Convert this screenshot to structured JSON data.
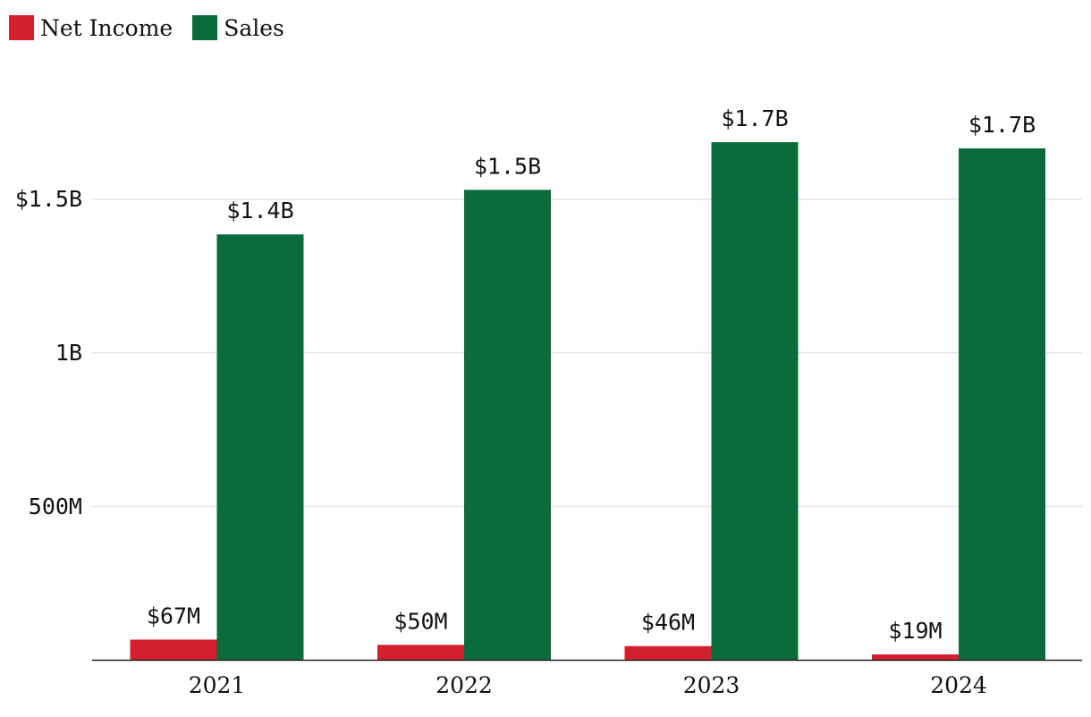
{
  "legend": {
    "items": [
      {
        "label": "Net Income",
        "color": "#d2202f"
      },
      {
        "label": "Sales",
        "color": "#0b6b3a"
      }
    ]
  },
  "chart_data": {
    "type": "bar",
    "categories": [
      "2021",
      "2022",
      "2023",
      "2024"
    ],
    "series": [
      {
        "name": "Net Income",
        "color": "#d2202f",
        "values": [
          67000000,
          50000000,
          46000000,
          19000000
        ],
        "labels": [
          "$67M",
          "$50M",
          "$46M",
          "$19M"
        ]
      },
      {
        "name": "Sales",
        "color": "#0b6b3a",
        "values": [
          1385000000,
          1530000000,
          1685000000,
          1665000000
        ],
        "labels": [
          "$1.4B",
          "$1.5B",
          "$1.7B",
          "$1.7B"
        ]
      }
    ],
    "yticks": [
      {
        "value": 500000000,
        "label": "500M"
      },
      {
        "value": 1000000000,
        "label": "1B"
      },
      {
        "value": 1500000000,
        "label": "$1.5B"
      }
    ],
    "ylim": [
      0,
      1800000000
    ],
    "grid": true,
    "legend_position": "top-left",
    "title": "",
    "xlabel": "",
    "ylabel": ""
  }
}
